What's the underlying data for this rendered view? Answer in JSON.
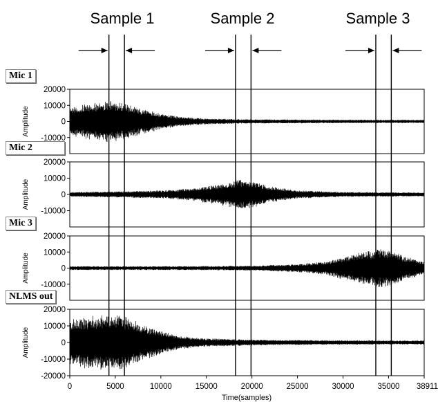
{
  "chart_data": [
    {
      "type": "line",
      "title": "Mic 1",
      "ylabel": "Amplitude",
      "xlabel": "",
      "xlim": [
        0,
        38911
      ],
      "ylim": [
        -20000,
        20000
      ],
      "ytick_labels": [
        "20000",
        "10000",
        "0",
        "-10000"
      ],
      "envelope": {
        "x": [
          0,
          2000,
          4000,
          5000,
          6000,
          8000,
          10000,
          12000,
          15000,
          20000,
          30000,
          38911
        ],
        "amplitude": [
          9000,
          11000,
          13000,
          13000,
          11000,
          8000,
          5000,
          3000,
          1800,
          1300,
          1100,
          1000
        ]
      }
    },
    {
      "type": "line",
      "title": "Mic 2",
      "ylabel": "Amplitude",
      "xlabel": "",
      "xlim": [
        0,
        38911
      ],
      "ylim": [
        -20000,
        20000
      ],
      "ytick_labels": [
        "20000",
        "10000",
        "0",
        "-10000"
      ],
      "envelope": {
        "x": [
          0,
          5000,
          10000,
          13000,
          16000,
          18500,
          20000,
          22000,
          25000,
          30000,
          38911
        ],
        "amplitude": [
          1500,
          1800,
          2500,
          3500,
          6000,
          9000,
          8500,
          5000,
          2500,
          1500,
          1200
        ]
      }
    },
    {
      "type": "line",
      "title": "Mic 3",
      "ylabel": "Amplitude",
      "xlabel": "",
      "xlim": [
        0,
        38911
      ],
      "ylim": [
        -20000,
        20000
      ],
      "ytick_labels": [
        "20000",
        "10000",
        "0",
        "-10000"
      ],
      "envelope": {
        "x": [
          0,
          5000,
          10000,
          15000,
          20000,
          25000,
          28000,
          30000,
          32000,
          34000,
          35000,
          36500,
          38911
        ],
        "amplitude": [
          1200,
          1200,
          1200,
          1300,
          1500,
          2500,
          4000,
          7000,
          10000,
          12000,
          11500,
          8000,
          4000
        ]
      }
    },
    {
      "type": "line",
      "title": "NLMS out",
      "ylabel": "Amplitude",
      "xlabel": "Time(samples)",
      "xlim": [
        0,
        38911
      ],
      "ylim": [
        -20000,
        20000
      ],
      "xtick_labels": [
        "0",
        "5000",
        "10000",
        "15000",
        "20000",
        "25000",
        "30000",
        "35000",
        "38911"
      ],
      "ytick_labels": [
        "20000",
        "10000",
        "0",
        "-10000",
        "-20000"
      ],
      "envelope": {
        "x": [
          0,
          2000,
          4000,
          6000,
          8000,
          10000,
          12000,
          15000,
          20000,
          25000,
          30000,
          38911
        ],
        "amplitude": [
          14000,
          16000,
          17000,
          16000,
          11000,
          7000,
          4000,
          2500,
          1800,
          1500,
          1300,
          1200
        ]
      }
    }
  ],
  "samples": [
    {
      "label": "Sample 1",
      "x_start": 4300,
      "x_end": 6000
    },
    {
      "label": "Sample 2",
      "x_start": 18200,
      "x_end": 19900
    },
    {
      "label": "Sample 3",
      "x_start": 33600,
      "x_end": 35300
    }
  ],
  "colors": {
    "signal": "#000000",
    "frame": "#000000",
    "background": "#ffffff"
  }
}
